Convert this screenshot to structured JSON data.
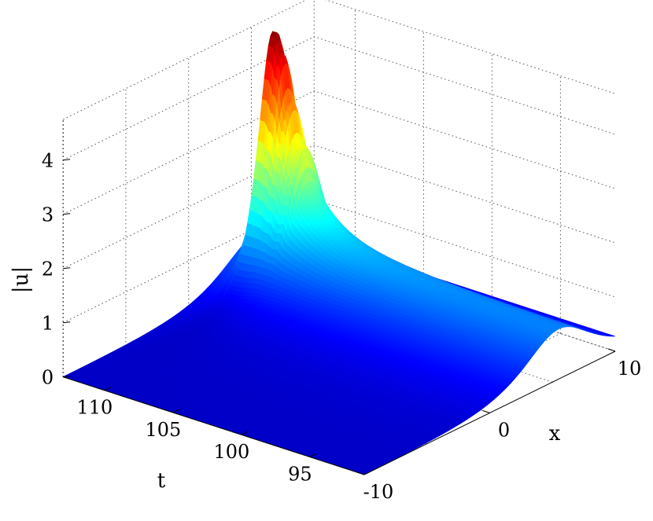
{
  "chart_data": {
    "type": "surface",
    "colormap": "jet",
    "zlabel": "|u|",
    "xlabel": "x",
    "tlabel": "t",
    "x_range": [
      -10,
      10
    ],
    "t_range": [
      91,
      113
    ],
    "z_range": [
      0,
      4
    ],
    "x_ticks": [
      "-10",
      "0",
      "10"
    ],
    "t_ticks": [
      "110",
      "105",
      "100",
      "95"
    ],
    "z_ticks": [
      "0",
      "1",
      "2",
      "3",
      "4"
    ],
    "grid": true,
    "wave_center_x": 5.5,
    "baseline_peak": 0.9,
    "max_peak": 4.75,
    "peak_t": 111.5,
    "secondary_peaks": [
      {
        "t": 111.0,
        "z": 4.35
      },
      {
        "t": 110.4,
        "z": 3.9
      },
      {
        "t": 109.6,
        "z": 3.2
      }
    ],
    "colors": {
      "low": "#00008f",
      "high": "#800000"
    }
  }
}
